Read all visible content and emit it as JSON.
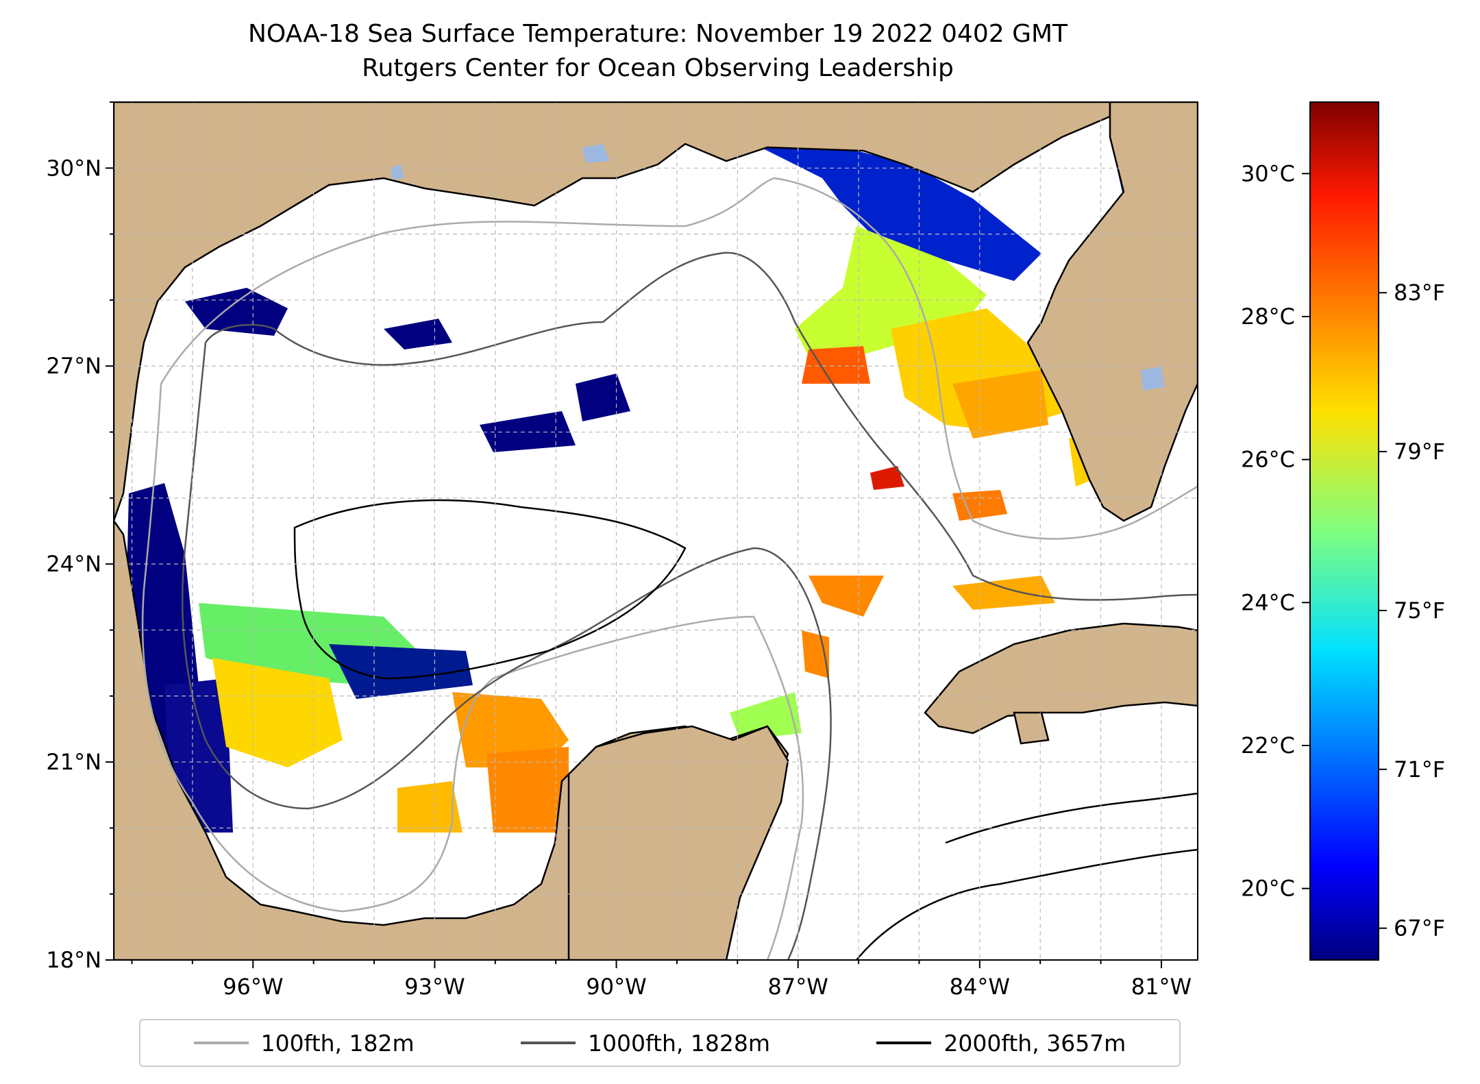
{
  "title": {
    "line1": "NOAA-18 Sea Surface Temperature: November 19 2022 0402 GMT",
    "line2": "Rutgers Center for Ocean Observing Leadership"
  },
  "map": {
    "lon_range": [
      -98.3,
      -80.4
    ],
    "lat_range": [
      18.0,
      31.0
    ],
    "lon_ticks": [
      {
        "value": -96,
        "label": "96°W"
      },
      {
        "value": -93,
        "label": "93°W"
      },
      {
        "value": -90,
        "label": "90°W"
      },
      {
        "value": -87,
        "label": "87°W"
      },
      {
        "value": -84,
        "label": "84°W"
      },
      {
        "value": -81,
        "label": "81°W"
      }
    ],
    "lat_ticks": [
      {
        "value": 18,
        "label": "18°N"
      },
      {
        "value": 21,
        "label": "21°N"
      },
      {
        "value": 24,
        "label": "24°N"
      },
      {
        "value": 27,
        "label": "27°N"
      },
      {
        "value": 30,
        "label": "30°N"
      }
    ],
    "gridlines": true,
    "colors": {
      "land": "#d2b48c",
      "water": "#ffffff",
      "lakes": "#9db8e0"
    }
  },
  "colorbar": {
    "colormap": "jet",
    "celsius_range": [
      19.0,
      31.0
    ],
    "celsius_ticks": [
      {
        "value": 20,
        "label": "20°C"
      },
      {
        "value": 22,
        "label": "22°C"
      },
      {
        "value": 24,
        "label": "24°C"
      },
      {
        "value": 26,
        "label": "26°C"
      },
      {
        "value": 28,
        "label": "28°C"
      },
      {
        "value": 30,
        "label": "30°C"
      }
    ],
    "fahrenheit_ticks": [
      {
        "value": 67,
        "label": "67°F"
      },
      {
        "value": 71,
        "label": "71°F"
      },
      {
        "value": 75,
        "label": "75°F"
      },
      {
        "value": 79,
        "label": "79°F"
      },
      {
        "value": 83,
        "label": "83°F"
      }
    ]
  },
  "legend": [
    {
      "label": "100fth, 182m",
      "color": "#aaaaaa"
    },
    {
      "label": "1000fth, 1828m",
      "color": "#555555"
    },
    {
      "label": "2000fth, 3657m",
      "color": "#000000"
    }
  ]
}
